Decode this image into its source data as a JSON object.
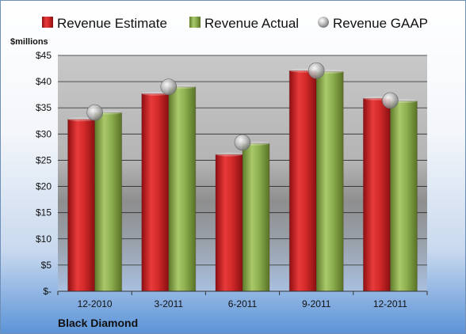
{
  "chart_data": {
    "type": "bar",
    "unit_label": "$millions",
    "company": "Black Diamond",
    "categories": [
      "12-2010",
      "3-2011",
      "6-2011",
      "9-2011",
      "12-2011"
    ],
    "series": [
      {
        "name": "Revenue Estimate",
        "kind": "bar",
        "color": "#d42a2a",
        "values": [
          32.8,
          37.7,
          26.1,
          42.1,
          36.8
        ]
      },
      {
        "name": "Revenue Actual",
        "kind": "bar",
        "color": "#8fb050",
        "values": [
          34.1,
          39.0,
          28.2,
          41.9,
          36.3
        ]
      },
      {
        "name": "Revenue GAAP",
        "kind": "marker",
        "color": "#b8b8b8",
        "values": [
          34.1,
          39.0,
          28.4,
          42.1,
          36.4
        ]
      }
    ],
    "ylim": [
      0,
      45
    ],
    "yticks": [
      0,
      5,
      10,
      15,
      20,
      25,
      30,
      35,
      40,
      45
    ],
    "ytick_labels": [
      "$-",
      "$5",
      "$10",
      "$15",
      "$20",
      "$25",
      "$30",
      "$35",
      "$40",
      "$45"
    ],
    "grid": true,
    "legend_position": "top"
  }
}
